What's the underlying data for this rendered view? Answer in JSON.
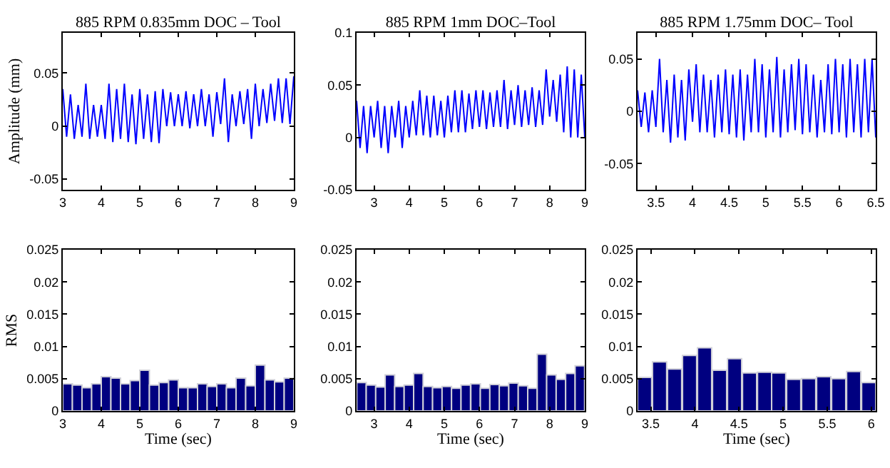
{
  "chart_data": [
    {
      "type": "line",
      "title": "885 RPM 0.835mm DOC – Tool",
      "ylabel": "Amplitude (mm)",
      "xlim": [
        3,
        9
      ],
      "xticks": [
        3,
        4,
        5,
        6,
        7,
        8,
        9
      ],
      "ylim": [
        -0.06,
        0.088
      ],
      "yticks": [
        -0.05,
        0,
        0.05
      ],
      "x": [
        3.0,
        3.1,
        3.2,
        3.3,
        3.4,
        3.5,
        3.6,
        3.7,
        3.8,
        3.9,
        4.0,
        4.1,
        4.2,
        4.3,
        4.4,
        4.5,
        4.6,
        4.7,
        4.8,
        4.9,
        5.0,
        5.1,
        5.2,
        5.3,
        5.4,
        5.5,
        5.6,
        5.7,
        5.8,
        5.9,
        6.0,
        6.1,
        6.2,
        6.3,
        6.4,
        6.5,
        6.6,
        6.7,
        6.8,
        6.9,
        7.0,
        7.1,
        7.2,
        7.3,
        7.4,
        7.5,
        7.6,
        7.7,
        7.8,
        7.9,
        8.0,
        8.1,
        8.2,
        8.3,
        8.4,
        8.5,
        8.6,
        8.7,
        8.8,
        8.9,
        9.0
      ],
      "series": [
        {
          "color": "#0000ff",
          "values": [
            0.035,
            -0.01,
            0.03,
            -0.012,
            0.02,
            -0.01,
            0.04,
            -0.012,
            0.02,
            -0.01,
            0.02,
            -0.012,
            0.04,
            -0.015,
            0.035,
            -0.012,
            0.04,
            -0.015,
            0.03,
            -0.017,
            0.035,
            -0.012,
            0.03,
            -0.015,
            0.033,
            -0.016,
            0.035,
            0.0,
            0.032,
            0.0,
            0.03,
            0.0,
            0.033,
            -0.002,
            0.03,
            0.0,
            0.035,
            0.0,
            0.03,
            -0.01,
            0.032,
            0.002,
            0.045,
            -0.015,
            0.03,
            0.0,
            0.033,
            0.002,
            0.035,
            -0.012,
            0.04,
            0.0,
            0.035,
            0.003,
            0.04,
            0.005,
            0.045,
            0.003,
            0.045,
            0.002,
            0.047
          ]
        }
      ]
    },
    {
      "type": "line",
      "title": "885 RPM 1mm DOC–Tool",
      "xlim": [
        2.5,
        9
      ],
      "xticks": [
        3,
        4,
        5,
        6,
        7,
        8,
        9
      ],
      "ylim": [
        -0.05,
        0.1
      ],
      "yticks": [
        -0.05,
        0,
        0.05,
        0.1
      ],
      "x": [
        2.5,
        2.6,
        2.7,
        2.8,
        2.9,
        3.0,
        3.1,
        3.2,
        3.3,
        3.4,
        3.5,
        3.6,
        3.7,
        3.8,
        3.9,
        4.0,
        4.1,
        4.2,
        4.3,
        4.4,
        4.5,
        4.6,
        4.7,
        4.8,
        4.9,
        5.0,
        5.1,
        5.2,
        5.3,
        5.4,
        5.5,
        5.6,
        5.7,
        5.8,
        5.9,
        6.0,
        6.1,
        6.2,
        6.3,
        6.4,
        6.5,
        6.6,
        6.7,
        6.8,
        6.9,
        7.0,
        7.1,
        7.2,
        7.3,
        7.4,
        7.5,
        7.6,
        7.7,
        7.8,
        7.9,
        8.0,
        8.1,
        8.2,
        8.3,
        8.4,
        8.5,
        8.6,
        8.7,
        8.8,
        8.9,
        9.0
      ],
      "series": [
        {
          "color": "#0000ff",
          "values": [
            0.035,
            -0.01,
            0.03,
            -0.015,
            0.03,
            0.0,
            0.035,
            -0.01,
            0.03,
            -0.015,
            0.03,
            0.0,
            0.035,
            -0.01,
            0.03,
            0.0,
            0.035,
            0.002,
            0.045,
            0.002,
            0.04,
            0.0,
            0.04,
            0.002,
            0.035,
            0.0,
            0.04,
            0.005,
            0.045,
            0.005,
            0.045,
            0.005,
            0.042,
            0.008,
            0.045,
            0.01,
            0.045,
            0.008,
            0.043,
            0.01,
            0.045,
            0.01,
            0.055,
            0.008,
            0.045,
            0.012,
            0.05,
            0.01,
            0.045,
            0.012,
            0.048,
            0.01,
            0.045,
            0.012,
            0.065,
            0.02,
            0.055,
            0.015,
            0.06,
            0.005,
            0.068,
            0.0,
            0.065,
            0.0,
            0.06,
            0.0
          ]
        }
      ]
    },
    {
      "type": "line",
      "title": "885 RPM 1.75mm DOC– Tool",
      "xlim": [
        3.25,
        6.5
      ],
      "xticks": [
        3.5,
        4,
        4.5,
        5,
        5.5,
        6,
        6.5
      ],
      "ylim": [
        -0.075,
        0.075
      ],
      "yticks": [
        -0.05,
        0,
        0.05
      ],
      "x": [
        3.25,
        3.3,
        3.35,
        3.4,
        3.45,
        3.5,
        3.55,
        3.6,
        3.65,
        3.7,
        3.75,
        3.8,
        3.85,
        3.9,
        3.95,
        4.0,
        4.05,
        4.1,
        4.15,
        4.2,
        4.25,
        4.3,
        4.35,
        4.4,
        4.45,
        4.5,
        4.55,
        4.6,
        4.65,
        4.7,
        4.75,
        4.8,
        4.85,
        4.9,
        4.95,
        5.0,
        5.05,
        5.1,
        5.15,
        5.2,
        5.25,
        5.3,
        5.35,
        5.4,
        5.45,
        5.5,
        5.55,
        5.6,
        5.65,
        5.7,
        5.75,
        5.8,
        5.85,
        5.9,
        5.95,
        6.0,
        6.05,
        6.1,
        6.15,
        6.2,
        6.25,
        6.3,
        6.35,
        6.4,
        6.45,
        6.5
      ],
      "series": [
        {
          "color": "#0000ff",
          "values": [
            0.02,
            -0.015,
            0.018,
            -0.02,
            0.02,
            -0.015,
            0.05,
            -0.02,
            0.03,
            -0.03,
            0.035,
            -0.025,
            0.03,
            -0.028,
            0.04,
            -0.01,
            0.045,
            -0.02,
            0.035,
            -0.02,
            0.03,
            -0.025,
            0.035,
            -0.02,
            0.04,
            -0.022,
            0.035,
            -0.025,
            0.04,
            -0.028,
            0.035,
            -0.02,
            0.05,
            -0.02,
            0.045,
            -0.025,
            0.04,
            -0.02,
            0.052,
            -0.025,
            0.04,
            -0.02,
            0.045,
            -0.018,
            0.05,
            -0.022,
            0.045,
            -0.02,
            0.035,
            -0.025,
            0.03,
            -0.02,
            0.045,
            -0.022,
            0.05,
            -0.02,
            0.045,
            -0.025,
            0.05,
            -0.02,
            0.045,
            -0.025,
            0.05,
            -0.02,
            0.05,
            -0.025
          ]
        }
      ]
    },
    {
      "type": "bar",
      "xlabel": "Time (sec)",
      "ylabel": "RMS",
      "xlim": [
        3,
        9
      ],
      "xticks": [
        3,
        4,
        5,
        6,
        7,
        8,
        9
      ],
      "ylim": [
        0,
        0.025
      ],
      "yticks": [
        0,
        0.005,
        0.01,
        0.015,
        0.02,
        0.025
      ],
      "x": [
        3.125,
        3.375,
        3.625,
        3.875,
        4.125,
        4.375,
        4.625,
        4.875,
        5.125,
        5.375,
        5.625,
        5.875,
        6.125,
        6.375,
        6.625,
        6.875,
        7.125,
        7.375,
        7.625,
        7.875,
        8.125,
        8.375,
        8.625,
        8.875
      ],
      "series": [
        {
          "color": "#000080",
          "values": [
            0.0042,
            0.004,
            0.0036,
            0.0042,
            0.0053,
            0.0051,
            0.0042,
            0.0047,
            0.0063,
            0.004,
            0.0044,
            0.0048,
            0.0036,
            0.0036,
            0.0042,
            0.0038,
            0.0042,
            0.0036,
            0.0051,
            0.0039,
            0.0071,
            0.0048,
            0.0045,
            0.0051
          ]
        }
      ]
    },
    {
      "type": "bar",
      "xlabel": "Time (sec)",
      "xlim": [
        2.5,
        9
      ],
      "xticks": [
        3,
        4,
        5,
        6,
        7,
        8,
        9
      ],
      "ylim": [
        0,
        0.025
      ],
      "yticks": [
        0,
        0.005,
        0.01,
        0.015,
        0.02,
        0.025
      ],
      "x": [
        2.64,
        2.91,
        3.18,
        3.45,
        3.72,
        3.99,
        4.26,
        4.53,
        4.8,
        5.07,
        5.34,
        5.61,
        5.89,
        6.16,
        6.43,
        6.7,
        6.97,
        7.24,
        7.51,
        7.78,
        8.05,
        8.32,
        8.59,
        8.86
      ],
      "series": [
        {
          "color": "#000080",
          "values": [
            0.0044,
            0.004,
            0.0037,
            0.0056,
            0.0038,
            0.004,
            0.0058,
            0.0038,
            0.0036,
            0.0038,
            0.0035,
            0.004,
            0.0042,
            0.0035,
            0.0041,
            0.0039,
            0.0043,
            0.0039,
            0.0035,
            0.0088,
            0.0056,
            0.0049,
            0.0058,
            0.007
          ]
        }
      ]
    },
    {
      "type": "bar",
      "xlabel": "Time (sec)",
      "xlim": [
        3.35,
        6.05
      ],
      "xticks": [
        3.5,
        4,
        4.5,
        5,
        5.5,
        6
      ],
      "ylim": [
        0,
        0.025
      ],
      "yticks": [
        0,
        0.005,
        0.01,
        0.015,
        0.02,
        0.025
      ],
      "x": [
        3.43,
        3.6,
        3.77,
        3.94,
        4.11,
        4.28,
        4.45,
        4.62,
        4.79,
        4.95,
        5.12,
        5.29,
        5.46,
        5.63,
        5.8,
        5.97
      ],
      "series": [
        {
          "color": "#000080",
          "values": [
            0.0052,
            0.0076,
            0.0065,
            0.0086,
            0.0098,
            0.0063,
            0.0081,
            0.0059,
            0.006,
            0.0059,
            0.0049,
            0.005,
            0.0053,
            0.005,
            0.0061,
            0.0044
          ]
        }
      ]
    }
  ]
}
